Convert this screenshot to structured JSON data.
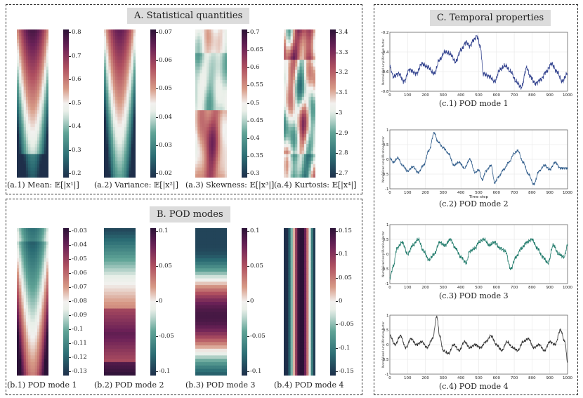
{
  "panels": {
    "a": {
      "title": "A. Statistical quantities"
    },
    "b": {
      "title": "B. POD modes"
    },
    "c": {
      "title": "C. Temporal properties"
    }
  },
  "stats": [
    {
      "caption": "(a.1) Mean: 𝔼[|x¹|]",
      "ticks": [
        "0.8",
        "0.7",
        "0.6",
        "0.5",
        "0.4",
        "0.3",
        "0.2"
      ],
      "range": [
        0.15,
        0.88
      ],
      "pattern": "mean"
    },
    {
      "caption": "(a.2) Variance: 𝔼[|x²|]",
      "ticks": [
        "0.07",
        "0.06",
        "0.05",
        "0.04",
        "0.03",
        "0.02"
      ],
      "range": [
        0.018,
        0.078
      ],
      "pattern": "variance"
    },
    {
      "caption": "(a.3) Skewness: 𝔼[|x³|]",
      "ticks": [
        "0.7",
        "0.65",
        "0.6",
        "0.55",
        "0.5",
        "0.45",
        "0.4",
        "0.35",
        "0.3"
      ],
      "range": [
        0.29,
        0.73
      ],
      "pattern": "skewness"
    },
    {
      "caption": "(a.4) Kurtosis: 𝔼[|x⁴|]",
      "ticks": [
        "3.4",
        "3.3",
        "3.2",
        "3.1",
        "3",
        "2.9",
        "2.8",
        "2.7"
      ],
      "range": [
        2.68,
        3.47
      ],
      "pattern": "kurtosis"
    }
  ],
  "modes": [
    {
      "caption": "(b.1) POD mode 1",
      "ticks": [
        "-0.03",
        "-0.04",
        "-0.05",
        "-0.06",
        "-0.07",
        "-0.08",
        "-0.09",
        "-0.1",
        "-0.11",
        "-0.12",
        "-0.13"
      ],
      "range": [
        -0.135,
        -0.025
      ],
      "pattern": "mode1"
    },
    {
      "caption": "(b.2) POD mode 2",
      "ticks": [
        "0.1",
        "0.05",
        "0",
        "-0.05",
        "-0.1"
      ],
      "range": [
        -0.13,
        0.13
      ],
      "pattern": "mode2"
    },
    {
      "caption": "(b.3) POD mode 3",
      "ticks": [
        "0.1",
        "0.05",
        "0",
        "-0.05",
        "-0.1"
      ],
      "range": [
        -0.13,
        0.13
      ],
      "pattern": "mode3"
    },
    {
      "caption": "(b.4) POD mode 4",
      "ticks": [
        "0.15",
        "0.1",
        "0.05",
        "0",
        "-0.05",
        "-0.1",
        "-0.15"
      ],
      "range": [
        -0.165,
        0.165
      ],
      "pattern": "mode4"
    }
  ],
  "chart_data": [
    {
      "type": "line",
      "title": "(c.1) POD mode 1",
      "xlabel": "",
      "ylabel": "Normalized amplification factor",
      "xlim": [
        0,
        1000
      ],
      "ylim": [
        -0.8,
        -0.2
      ],
      "xticks": [
        "0",
        "100",
        "200",
        "300",
        "400",
        "500",
        "600",
        "700",
        "800",
        "900",
        "1000"
      ],
      "yticks": [
        "-0.2",
        "-0.4",
        "-0.6",
        "-0.8"
      ],
      "anchors": [
        [
          0,
          -0.55
        ],
        [
          20,
          -0.65
        ],
        [
          50,
          -0.62
        ],
        [
          80,
          -0.7
        ],
        [
          110,
          -0.58
        ],
        [
          150,
          -0.62
        ],
        [
          180,
          -0.52
        ],
        [
          210,
          -0.55
        ],
        [
          250,
          -0.62
        ],
        [
          280,
          -0.48
        ],
        [
          310,
          -0.4
        ],
        [
          340,
          -0.42
        ],
        [
          370,
          -0.5
        ],
        [
          400,
          -0.38
        ],
        [
          430,
          -0.3
        ],
        [
          450,
          -0.34
        ],
        [
          470,
          -0.28
        ],
        [
          490,
          -0.24
        ],
        [
          510,
          -0.35
        ],
        [
          525,
          -0.62
        ],
        [
          560,
          -0.65
        ],
        [
          590,
          -0.7
        ],
        [
          620,
          -0.58
        ],
        [
          650,
          -0.54
        ],
        [
          680,
          -0.6
        ],
        [
          710,
          -0.7
        ],
        [
          740,
          -0.76
        ],
        [
          770,
          -0.56
        ],
        [
          790,
          -0.65
        ],
        [
          820,
          -0.72
        ],
        [
          850,
          -0.68
        ],
        [
          880,
          -0.6
        ],
        [
          910,
          -0.52
        ],
        [
          940,
          -0.6
        ],
        [
          970,
          -0.7
        ],
        [
          1000,
          -0.62
        ]
      ],
      "noise": 0.03,
      "color": "#34448f"
    },
    {
      "type": "line",
      "title": "(c.2) POD mode 2",
      "xlabel": "Time step",
      "ylabel": "Normalized amplification factor",
      "xlim": [
        0,
        1000
      ],
      "ylim": [
        -1,
        1
      ],
      "xticks": [
        "0",
        "100",
        "200",
        "300",
        "400",
        "500",
        "600",
        "700",
        "800",
        "900",
        "1000"
      ],
      "yticks": [
        "1",
        "0.5",
        "0",
        "-0.5",
        "-1"
      ],
      "anchors": [
        [
          0,
          0.05
        ],
        [
          20,
          -0.1
        ],
        [
          45,
          0.05
        ],
        [
          70,
          -0.2
        ],
        [
          100,
          -0.4
        ],
        [
          130,
          -0.25
        ],
        [
          160,
          -0.45
        ],
        [
          190,
          -0.2
        ],
        [
          220,
          0.3
        ],
        [
          250,
          0.9
        ],
        [
          270,
          0.6
        ],
        [
          300,
          0.4
        ],
        [
          330,
          0.2
        ],
        [
          360,
          -0.2
        ],
        [
          390,
          -0.1
        ],
        [
          420,
          -0.3
        ],
        [
          450,
          0.0
        ],
        [
          480,
          -0.45
        ],
        [
          500,
          -0.35
        ],
        [
          520,
          -0.7
        ],
        [
          540,
          -0.4
        ],
        [
          570,
          -0.2
        ],
        [
          590,
          -0.8
        ],
        [
          610,
          -0.6
        ],
        [
          640,
          -0.35
        ],
        [
          670,
          -0.1
        ],
        [
          700,
          0.2
        ],
        [
          720,
          0.3
        ],
        [
          750,
          -0.1
        ],
        [
          780,
          -0.5
        ],
        [
          810,
          -0.85
        ],
        [
          840,
          -0.4
        ],
        [
          870,
          -0.2
        ],
        [
          900,
          -0.35
        ],
        [
          930,
          -0.1
        ],
        [
          960,
          -0.3
        ],
        [
          1000,
          -0.3
        ]
      ],
      "noise": 0.05,
      "color": "#2e5b8a"
    },
    {
      "type": "line",
      "title": "(c.3) POD mode 3",
      "xlabel": "",
      "ylabel": "Normalized amplification factor",
      "xlim": [
        0,
        1000
      ],
      "ylim": [
        -1,
        1
      ],
      "xticks": [
        "0",
        "100",
        "200",
        "300",
        "400",
        "500",
        "600",
        "700",
        "800",
        "900",
        "1000"
      ],
      "yticks": [
        "1",
        "0.5",
        "0",
        "-0.5",
        "-1"
      ],
      "anchors": [
        [
          0,
          -0.8
        ],
        [
          20,
          -0.4
        ],
        [
          40,
          0.2
        ],
        [
          70,
          0.4
        ],
        [
          100,
          0.0
        ],
        [
          130,
          0.3
        ],
        [
          160,
          0.5
        ],
        [
          190,
          0.1
        ],
        [
          220,
          -0.2
        ],
        [
          250,
          0.0
        ],
        [
          280,
          0.4
        ],
        [
          310,
          0.3
        ],
        [
          340,
          0.5
        ],
        [
          370,
          0.2
        ],
        [
          400,
          -0.1
        ],
        [
          430,
          -0.3
        ],
        [
          450,
          0.1
        ],
        [
          480,
          0.2
        ],
        [
          500,
          0.4
        ],
        [
          530,
          0.5
        ],
        [
          560,
          0.3
        ],
        [
          590,
          0.4
        ],
        [
          620,
          0.2
        ],
        [
          650,
          0.1
        ],
        [
          680,
          -0.5
        ],
        [
          710,
          -0.1
        ],
        [
          740,
          0.2
        ],
        [
          770,
          0.4
        ],
        [
          800,
          0.5
        ],
        [
          830,
          0.2
        ],
        [
          860,
          -0.1
        ],
        [
          890,
          -0.3
        ],
        [
          920,
          0.3
        ],
        [
          950,
          0.0
        ],
        [
          980,
          -0.1
        ],
        [
          1000,
          0.3
        ]
      ],
      "noise": 0.08,
      "color": "#1f7a6a"
    },
    {
      "type": "line",
      "title": "(c.4) POD mode 4",
      "xlabel": "",
      "ylabel": "Normalized amplification factor",
      "xlim": [
        0,
        1000
      ],
      "ylim": [
        -1,
        1
      ],
      "xticks": [
        "0",
        "100",
        "200",
        "300",
        "400",
        "500",
        "600",
        "700",
        "800",
        "900",
        "1000"
      ],
      "yticks": [
        "1",
        "0.5",
        "0",
        "-0.5",
        "-1"
      ],
      "anchors": [
        [
          0,
          0.3
        ],
        [
          30,
          0.0
        ],
        [
          60,
          0.3
        ],
        [
          90,
          -0.1
        ],
        [
          120,
          0.2
        ],
        [
          150,
          0.0
        ],
        [
          180,
          0.1
        ],
        [
          210,
          -0.1
        ],
        [
          240,
          0.2
        ],
        [
          265,
          0.95
        ],
        [
          280,
          0.3
        ],
        [
          300,
          -0.2
        ],
        [
          330,
          -0.3
        ],
        [
          360,
          0.0
        ],
        [
          390,
          -0.2
        ],
        [
          420,
          0.1
        ],
        [
          450,
          -0.1
        ],
        [
          480,
          0.0
        ],
        [
          510,
          -0.1
        ],
        [
          540,
          0.1
        ],
        [
          570,
          0.3
        ],
        [
          600,
          0.0
        ],
        [
          630,
          -0.2
        ],
        [
          660,
          0.1
        ],
        [
          690,
          -0.1
        ],
        [
          720,
          -0.2
        ],
        [
          750,
          0.1
        ],
        [
          780,
          0.2
        ],
        [
          810,
          -0.1
        ],
        [
          840,
          0.0
        ],
        [
          870,
          -0.2
        ],
        [
          900,
          0.1
        ],
        [
          930,
          0.0
        ],
        [
          960,
          0.5
        ],
        [
          985,
          0.1
        ],
        [
          1000,
          -0.6
        ]
      ],
      "noise": 0.06,
      "color": "#333333"
    }
  ]
}
